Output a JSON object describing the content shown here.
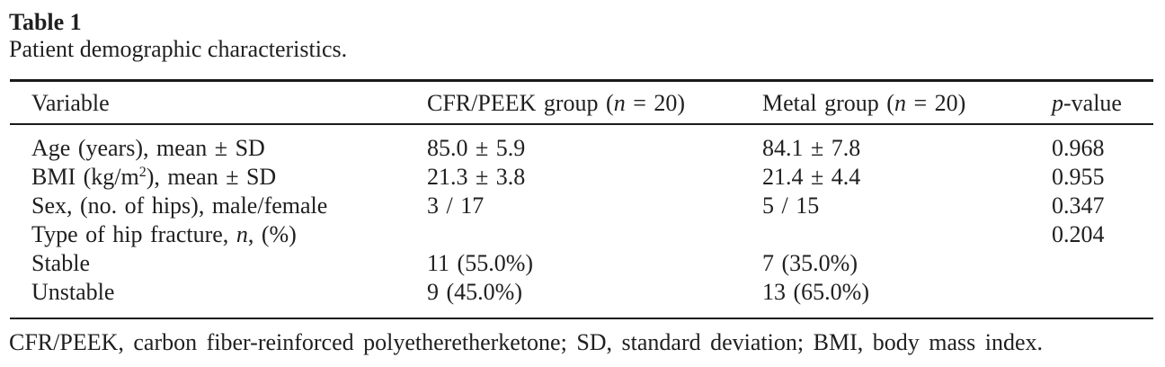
{
  "page": {
    "title": "Table 1",
    "caption": "Patient demographic characteristics.",
    "footnote": "CFR/PEEK, carbon fiber-reinforced polyetheretherketone; SD, standard deviation; BMI, body mass index."
  },
  "colors": {
    "background": "#ffffff",
    "text": "#1f1f1f",
    "rule": "#1a1a1a"
  },
  "table": {
    "columns": [
      {
        "name": "Variable",
        "label_segments": [
          {
            "t": "text",
            "v": "Variable"
          }
        ]
      },
      {
        "name": "CFR/PEEK group (n = 20)",
        "label_segments": [
          {
            "t": "text",
            "v": "CFR/PEEK group ("
          },
          {
            "t": "i",
            "v": "n"
          },
          {
            "t": "text",
            "v": " = 20)"
          }
        ]
      },
      {
        "name": "Metal group (n = 20)",
        "label_segments": [
          {
            "t": "text",
            "v": "Metal group ("
          },
          {
            "t": "i",
            "v": "n"
          },
          {
            "t": "text",
            "v": " = 20)"
          }
        ]
      },
      {
        "name": "p-value",
        "label_segments": [
          {
            "t": "i",
            "v": "p"
          },
          {
            "t": "text",
            "v": "-value"
          }
        ]
      }
    ],
    "rows": [
      {
        "cells": [
          [
            {
              "t": "text",
              "v": "Age (years), mean ± SD"
            }
          ],
          [
            {
              "t": "text",
              "v": "85.0 ± 5.9"
            }
          ],
          [
            {
              "t": "text",
              "v": "84.1 ± 7.8"
            }
          ],
          [
            {
              "t": "text",
              "v": "0.968"
            }
          ]
        ]
      },
      {
        "cells": [
          [
            {
              "t": "text",
              "v": "BMI (kg/m"
            },
            {
              "t": "sup",
              "v": "2"
            },
            {
              "t": "text",
              "v": "), mean ± SD"
            }
          ],
          [
            {
              "t": "text",
              "v": "21.3 ± 3.8"
            }
          ],
          [
            {
              "t": "text",
              "v": "21.4 ± 4.4"
            }
          ],
          [
            {
              "t": "text",
              "v": "0.955"
            }
          ]
        ]
      },
      {
        "cells": [
          [
            {
              "t": "text",
              "v": "Sex, (no. of hips), male/female"
            }
          ],
          [
            {
              "t": "text",
              "v": "3 / 17"
            }
          ],
          [
            {
              "t": "text",
              "v": "5 / 15"
            }
          ],
          [
            {
              "t": "text",
              "v": "0.347"
            }
          ]
        ]
      },
      {
        "cells": [
          [
            {
              "t": "text",
              "v": "Type of hip fracture, "
            },
            {
              "t": "i",
              "v": "n"
            },
            {
              "t": "text",
              "v": ", (%)"
            }
          ],
          [],
          [],
          [
            {
              "t": "text",
              "v": "0.204"
            }
          ]
        ]
      },
      {
        "cells": [
          [
            {
              "t": "text",
              "v": "Stable"
            }
          ],
          [
            {
              "t": "text",
              "v": "11 (55.0%)"
            }
          ],
          [
            {
              "t": "text",
              "v": "7 (35.0%)"
            }
          ],
          []
        ]
      },
      {
        "cells": [
          [
            {
              "t": "text",
              "v": "Unstable"
            }
          ],
          [
            {
              "t": "text",
              "v": "9 (45.0%)"
            }
          ],
          [
            {
              "t": "text",
              "v": "13 (65.0%)"
            }
          ],
          []
        ]
      }
    ]
  }
}
